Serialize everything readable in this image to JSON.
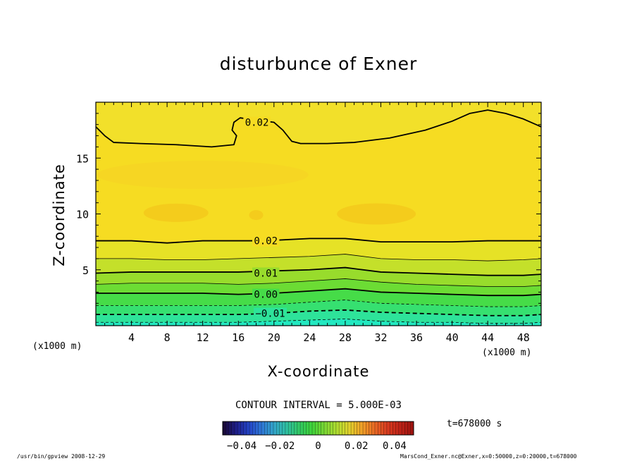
{
  "title": "disturbunce of Exner",
  "footer": {
    "left": "/usr/bin/gpview   2008-12-29",
    "right": "MarsCond_Exner.nc@Exner,x=0:50000,z=0:20000,t=678000"
  },
  "contour_interval": "CONTOUR INTERVAL = 5.000E-03",
  "time_label": "t=678000 s",
  "chart_data": {
    "type": "heatmap",
    "title": "disturbunce of Exner",
    "xlabel": "X-coordinate",
    "ylabel": "Z-coordinate",
    "x_unit": "(x1000 m)",
    "xlim": [
      0,
      50
    ],
    "ylim": [
      0,
      20
    ],
    "x_ticks": [
      4,
      8,
      12,
      16,
      20,
      24,
      28,
      32,
      36,
      40,
      44,
      48
    ],
    "y_ticks": [
      5,
      10,
      15
    ],
    "contour_interval": 0.005,
    "contour_labels": [
      {
        "text": "0.02",
        "x": 16.5,
        "z": 18.2
      },
      {
        "text": "0.02",
        "x": 17.5,
        "z": 7.6
      },
      {
        "text": "0.01",
        "x": 17.5,
        "z": 4.7
      },
      {
        "text": "0.00",
        "x": 17.5,
        "z": 2.8
      },
      {
        "text": "-0.01",
        "x": 18.0,
        "z": 1.1
      }
    ],
    "contours": [
      {
        "level": 0.02,
        "style": "solid",
        "bold": true,
        "points": [
          [
            0,
            17.8
          ],
          [
            1,
            17.0
          ],
          [
            2,
            16.4
          ],
          [
            5,
            16.3
          ],
          [
            9,
            16.2
          ],
          [
            13,
            16.0
          ],
          [
            15.5,
            16.2
          ],
          [
            15.8,
            17.0
          ],
          [
            15.3,
            17.5
          ],
          [
            15.5,
            18.2
          ],
          [
            16.2,
            18.6
          ],
          [
            18,
            18.4
          ],
          [
            20,
            18.2
          ],
          [
            21,
            17.5
          ],
          [
            22,
            16.5
          ],
          [
            23,
            16.3
          ],
          [
            26,
            16.3
          ],
          [
            29,
            16.4
          ],
          [
            33,
            16.8
          ],
          [
            37,
            17.5
          ],
          [
            40,
            18.3
          ],
          [
            42,
            19.0
          ],
          [
            44,
            19.3
          ],
          [
            46,
            19.0
          ],
          [
            48,
            18.5
          ],
          [
            50,
            17.8
          ]
        ]
      },
      {
        "level": 0.02,
        "style": "solid",
        "bold": true,
        "points": [
          [
            0,
            7.6
          ],
          [
            4,
            7.6
          ],
          [
            8,
            7.4
          ],
          [
            12,
            7.6
          ],
          [
            16,
            7.6
          ],
          [
            19,
            7.6
          ],
          [
            24,
            7.8
          ],
          [
            28,
            7.8
          ],
          [
            32,
            7.5
          ],
          [
            36,
            7.5
          ],
          [
            40,
            7.5
          ],
          [
            44,
            7.6
          ],
          [
            48,
            7.6
          ],
          [
            50,
            7.6
          ]
        ]
      },
      {
        "level": 0.015,
        "style": "solid",
        "bold": false,
        "points": [
          [
            0,
            6.0
          ],
          [
            4,
            6.0
          ],
          [
            8,
            5.9
          ],
          [
            12,
            5.9
          ],
          [
            16,
            6.0
          ],
          [
            20,
            6.1
          ],
          [
            24,
            6.2
          ],
          [
            28,
            6.4
          ],
          [
            32,
            6.0
          ],
          [
            36,
            5.9
          ],
          [
            40,
            5.9
          ],
          [
            44,
            5.8
          ],
          [
            48,
            5.9
          ],
          [
            50,
            6.0
          ]
        ]
      },
      {
        "level": 0.01,
        "style": "solid",
        "bold": true,
        "points": [
          [
            0,
            4.7
          ],
          [
            4,
            4.8
          ],
          [
            8,
            4.8
          ],
          [
            12,
            4.8
          ],
          [
            16,
            4.8
          ],
          [
            20,
            4.9
          ],
          [
            24,
            5.0
          ],
          [
            28,
            5.2
          ],
          [
            32,
            4.8
          ],
          [
            36,
            4.7
          ],
          [
            40,
            4.6
          ],
          [
            44,
            4.5
          ],
          [
            48,
            4.5
          ],
          [
            50,
            4.6
          ]
        ]
      },
      {
        "level": 0.005,
        "style": "solid",
        "bold": false,
        "points": [
          [
            0,
            3.7
          ],
          [
            4,
            3.8
          ],
          [
            8,
            3.8
          ],
          [
            12,
            3.8
          ],
          [
            16,
            3.7
          ],
          [
            20,
            3.8
          ],
          [
            24,
            4.0
          ],
          [
            28,
            4.2
          ],
          [
            32,
            3.9
          ],
          [
            36,
            3.7
          ],
          [
            40,
            3.6
          ],
          [
            44,
            3.5
          ],
          [
            48,
            3.5
          ],
          [
            50,
            3.6
          ]
        ]
      },
      {
        "level": 0.0,
        "style": "solid",
        "bold": true,
        "points": [
          [
            0,
            2.9
          ],
          [
            4,
            2.9
          ],
          [
            8,
            2.9
          ],
          [
            12,
            2.9
          ],
          [
            16,
            2.8
          ],
          [
            20,
            2.9
          ],
          [
            24,
            3.1
          ],
          [
            28,
            3.3
          ],
          [
            32,
            3.0
          ],
          [
            36,
            2.9
          ],
          [
            40,
            2.8
          ],
          [
            44,
            2.7
          ],
          [
            48,
            2.7
          ],
          [
            50,
            2.8
          ]
        ]
      },
      {
        "level": -0.005,
        "style": "dashed",
        "bold": false,
        "points": [
          [
            0,
            1.8
          ],
          [
            4,
            1.8
          ],
          [
            8,
            1.8
          ],
          [
            12,
            1.8
          ],
          [
            16,
            1.8
          ],
          [
            20,
            1.9
          ],
          [
            24,
            2.1
          ],
          [
            28,
            2.3
          ],
          [
            32,
            2.0
          ],
          [
            36,
            1.9
          ],
          [
            40,
            1.8
          ],
          [
            44,
            1.7
          ],
          [
            48,
            1.7
          ],
          [
            50,
            1.8
          ]
        ]
      },
      {
        "level": -0.01,
        "style": "dashed",
        "bold": true,
        "points": [
          [
            0,
            1.0
          ],
          [
            4,
            1.0
          ],
          [
            8,
            1.0
          ],
          [
            12,
            1.0
          ],
          [
            16,
            1.0
          ],
          [
            20,
            1.1
          ],
          [
            24,
            1.3
          ],
          [
            28,
            1.4
          ],
          [
            32,
            1.2
          ],
          [
            36,
            1.1
          ],
          [
            40,
            1.0
          ],
          [
            44,
            0.9
          ],
          [
            48,
            0.9
          ],
          [
            50,
            1.0
          ]
        ]
      },
      {
        "level": -0.015,
        "style": "dashed",
        "bold": false,
        "points": [
          [
            0,
            0.3
          ],
          [
            4,
            0.3
          ],
          [
            8,
            0.3
          ],
          [
            12,
            0.3
          ],
          [
            16,
            0.3
          ],
          [
            20,
            0.4
          ],
          [
            24,
            0.5
          ],
          [
            28,
            0.6
          ],
          [
            32,
            0.4
          ],
          [
            36,
            0.3
          ],
          [
            40,
            0.3
          ],
          [
            44,
            0.2
          ],
          [
            48,
            0.2
          ],
          [
            50,
            0.3
          ]
        ]
      }
    ],
    "colorbar": {
      "min": -0.05,
      "max": 0.05,
      "tick_values": [
        -0.04,
        -0.02,
        0,
        0.02,
        0.04
      ],
      "tick_labels": [
        "-0.04",
        "-0.02",
        "0",
        "0.02",
        "0.04"
      ],
      "colors": [
        "#1a0a3a",
        "#1e1f8c",
        "#2446c8",
        "#2f78d6",
        "#33a6c8",
        "#2fc0a0",
        "#32c864",
        "#3ed23a",
        "#7ad634",
        "#b0dc30",
        "#e0d02c",
        "#f0a028",
        "#e86a24",
        "#d83c20",
        "#c02418",
        "#a01410"
      ]
    }
  }
}
